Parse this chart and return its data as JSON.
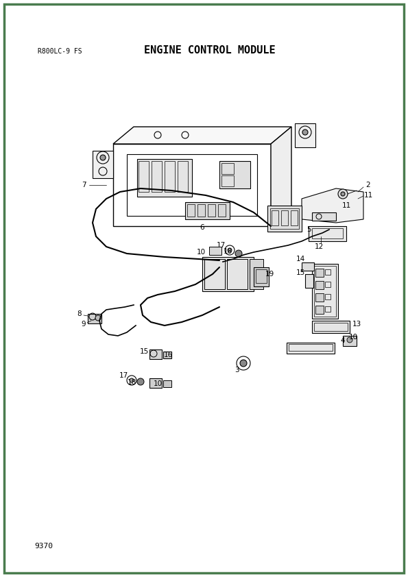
{
  "title": "ENGINE CONTROL MODULE",
  "subtitle": "R800LC-9 FS",
  "page_number": "9370",
  "border_color": "#4a7c4e",
  "background_color": "#ffffff",
  "line_color": "#000000",
  "text_color": "#000000"
}
